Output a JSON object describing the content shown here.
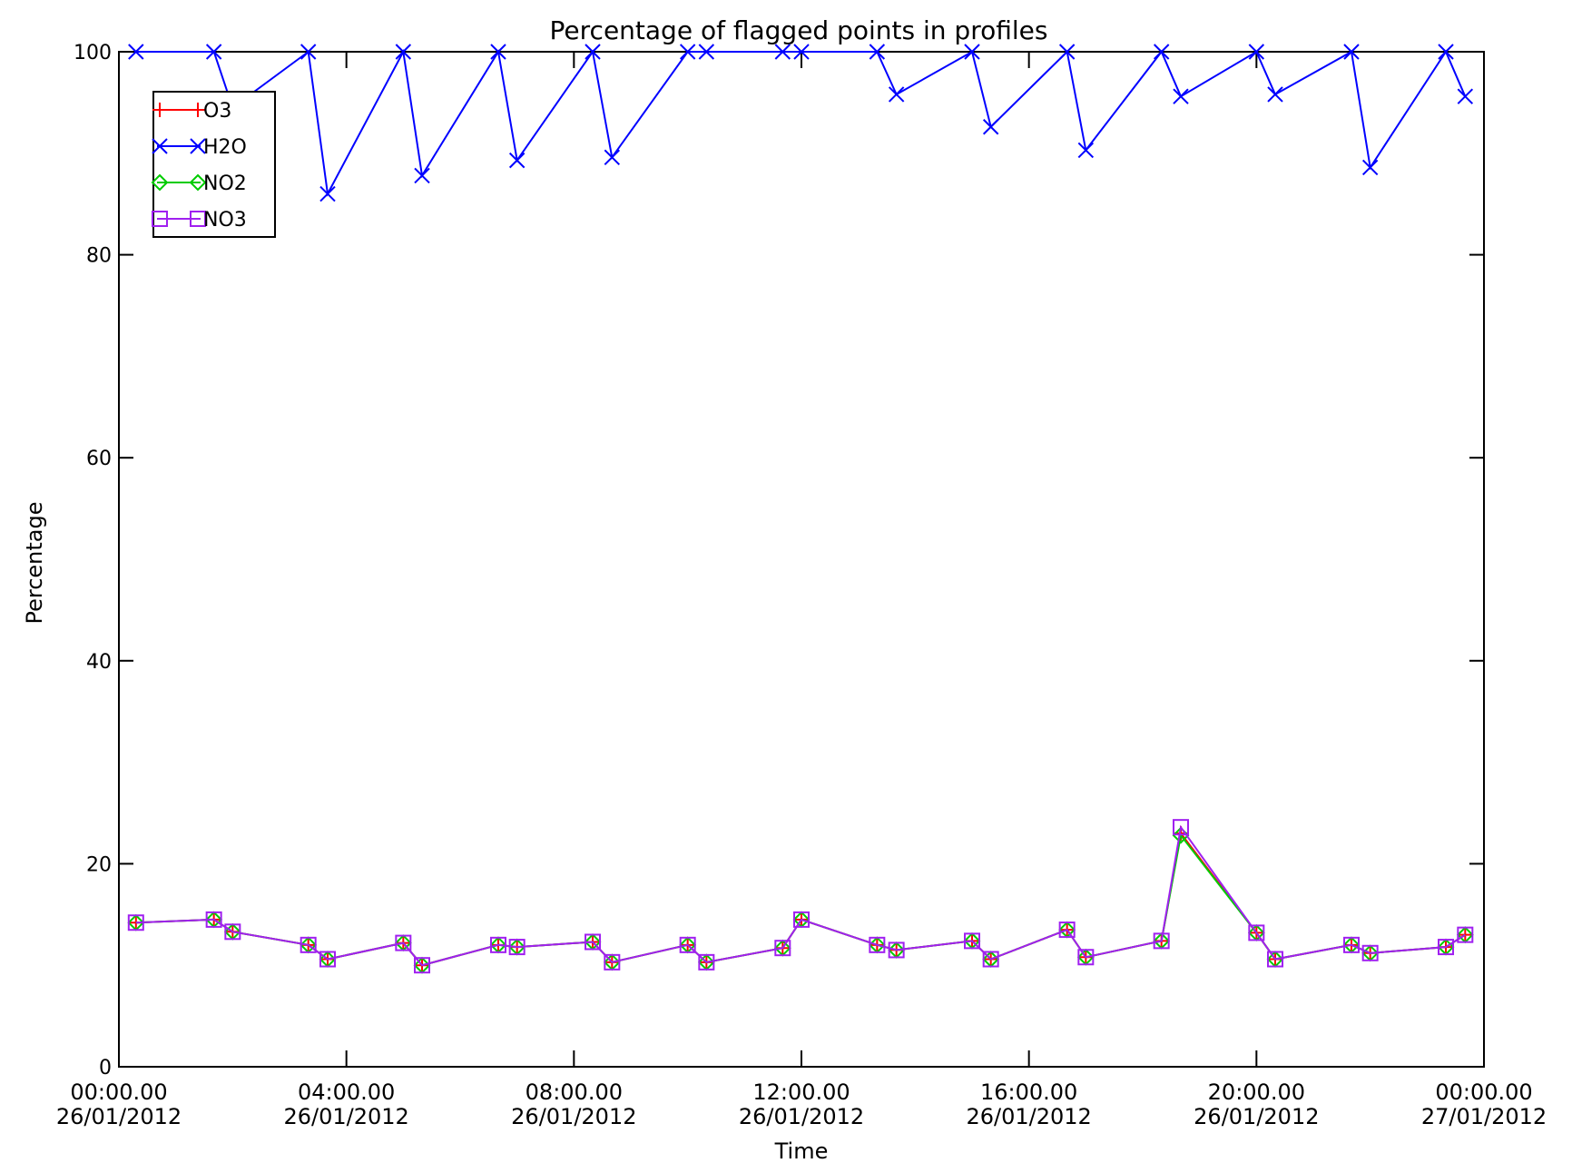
{
  "chart_data": {
    "type": "line",
    "title": "Percentage of flagged points in profiles",
    "xlabel": "Time",
    "ylabel": "Percentage",
    "xlim": [
      0,
      24
    ],
    "ylim": [
      0,
      100
    ],
    "grid": false,
    "legend_position": "top-left",
    "x_ticks": [
      {
        "value": 0,
        "time": "00:00.00",
        "date": "26/01/2012"
      },
      {
        "value": 4,
        "time": "04:00.00",
        "date": "26/01/2012"
      },
      {
        "value": 8,
        "time": "08:00.00",
        "date": "26/01/2012"
      },
      {
        "value": 12,
        "time": "12:00.00",
        "date": "26/01/2012"
      },
      {
        "value": 16,
        "time": "16:00.00",
        "date": "26/01/2012"
      },
      {
        "value": 20,
        "time": "20:00.00",
        "date": "26/01/2012"
      },
      {
        "value": 24,
        "time": "00:00.00",
        "date": "27/01/2012"
      }
    ],
    "y_ticks": [
      {
        "value": 0,
        "label": "0"
      },
      {
        "value": 20,
        "label": "20"
      },
      {
        "value": 40,
        "label": "40"
      },
      {
        "value": 60,
        "label": "60"
      },
      {
        "value": 80,
        "label": "80"
      },
      {
        "value": 100,
        "label": "100"
      }
    ],
    "series": [
      {
        "name": "O3",
        "color": "#ff0000",
        "marker": "plus",
        "x": [
          0.3,
          1.67,
          2.0,
          3.33,
          3.67,
          5.0,
          5.33,
          6.67,
          7.0,
          8.33,
          8.67,
          10.0,
          10.33,
          11.67,
          12.0,
          13.33,
          13.67,
          15.0,
          15.33,
          16.67,
          17.0,
          18.33,
          18.67,
          20.0,
          20.33,
          21.67,
          22.0,
          23.33,
          23.67
        ],
        "y": [
          14.2,
          14.5,
          13.3,
          12.0,
          10.6,
          12.2,
          10.0,
          12.0,
          11.8,
          12.3,
          10.3,
          12.0,
          10.3,
          11.7,
          14.5,
          12.0,
          11.5,
          12.4,
          10.6,
          13.5,
          10.8,
          12.4,
          23.0,
          13.2,
          10.6,
          12.0,
          11.2,
          11.8,
          13.0
        ]
      },
      {
        "name": "H2O",
        "color": "#0000ff",
        "marker": "x",
        "x": [
          0.3,
          1.67,
          2.0,
          3.33,
          3.67,
          5.0,
          5.33,
          6.67,
          7.0,
          8.33,
          8.67,
          10.0,
          10.33,
          11.67,
          12.0,
          13.33,
          13.67,
          15.0,
          15.33,
          16.67,
          17.0,
          18.33,
          18.67,
          20.0,
          20.33,
          21.67,
          22.0,
          23.33,
          23.67
        ],
        "y": [
          100,
          100,
          94.5,
          100,
          86.0,
          100,
          87.8,
          100,
          89.3,
          100,
          89.6,
          100,
          100,
          100,
          100,
          100,
          95.8,
          100,
          92.6,
          100,
          90.3,
          100,
          95.6,
          100,
          95.8,
          100,
          88.6,
          100,
          95.6
        ]
      },
      {
        "name": "NO2",
        "color": "#00cc00",
        "marker": "diamond",
        "x": [
          0.3,
          1.67,
          2.0,
          3.33,
          3.67,
          5.0,
          5.33,
          6.67,
          7.0,
          8.33,
          8.67,
          10.0,
          10.33,
          11.67,
          12.0,
          13.33,
          13.67,
          15.0,
          15.33,
          16.67,
          17.0,
          18.33,
          18.67,
          20.0,
          20.33,
          21.67,
          22.0,
          23.33,
          23.67
        ],
        "y": [
          14.2,
          14.5,
          13.3,
          12.0,
          10.6,
          12.2,
          10.0,
          12.0,
          11.8,
          12.3,
          10.3,
          12.0,
          10.3,
          11.7,
          14.5,
          12.0,
          11.5,
          12.4,
          10.6,
          13.5,
          10.8,
          12.4,
          22.8,
          13.2,
          10.6,
          12.0,
          11.2,
          11.8,
          13.0
        ]
      },
      {
        "name": "NO3",
        "color": "#a020f0",
        "marker": "square",
        "x": [
          0.3,
          1.67,
          2.0,
          3.33,
          3.67,
          5.0,
          5.33,
          6.67,
          7.0,
          8.33,
          8.67,
          10.0,
          10.33,
          11.67,
          12.0,
          13.33,
          13.67,
          15.0,
          15.33,
          16.67,
          17.0,
          18.33,
          18.67,
          20.0,
          20.33,
          21.67,
          22.0,
          23.33,
          23.67
        ],
        "y": [
          14.2,
          14.5,
          13.3,
          12.0,
          10.6,
          12.2,
          10.0,
          12.0,
          11.8,
          12.3,
          10.3,
          12.0,
          10.3,
          11.7,
          14.5,
          12.0,
          11.5,
          12.4,
          10.6,
          13.5,
          10.8,
          12.4,
          23.6,
          13.2,
          10.6,
          12.0,
          11.2,
          11.8,
          13.0
        ]
      }
    ]
  }
}
